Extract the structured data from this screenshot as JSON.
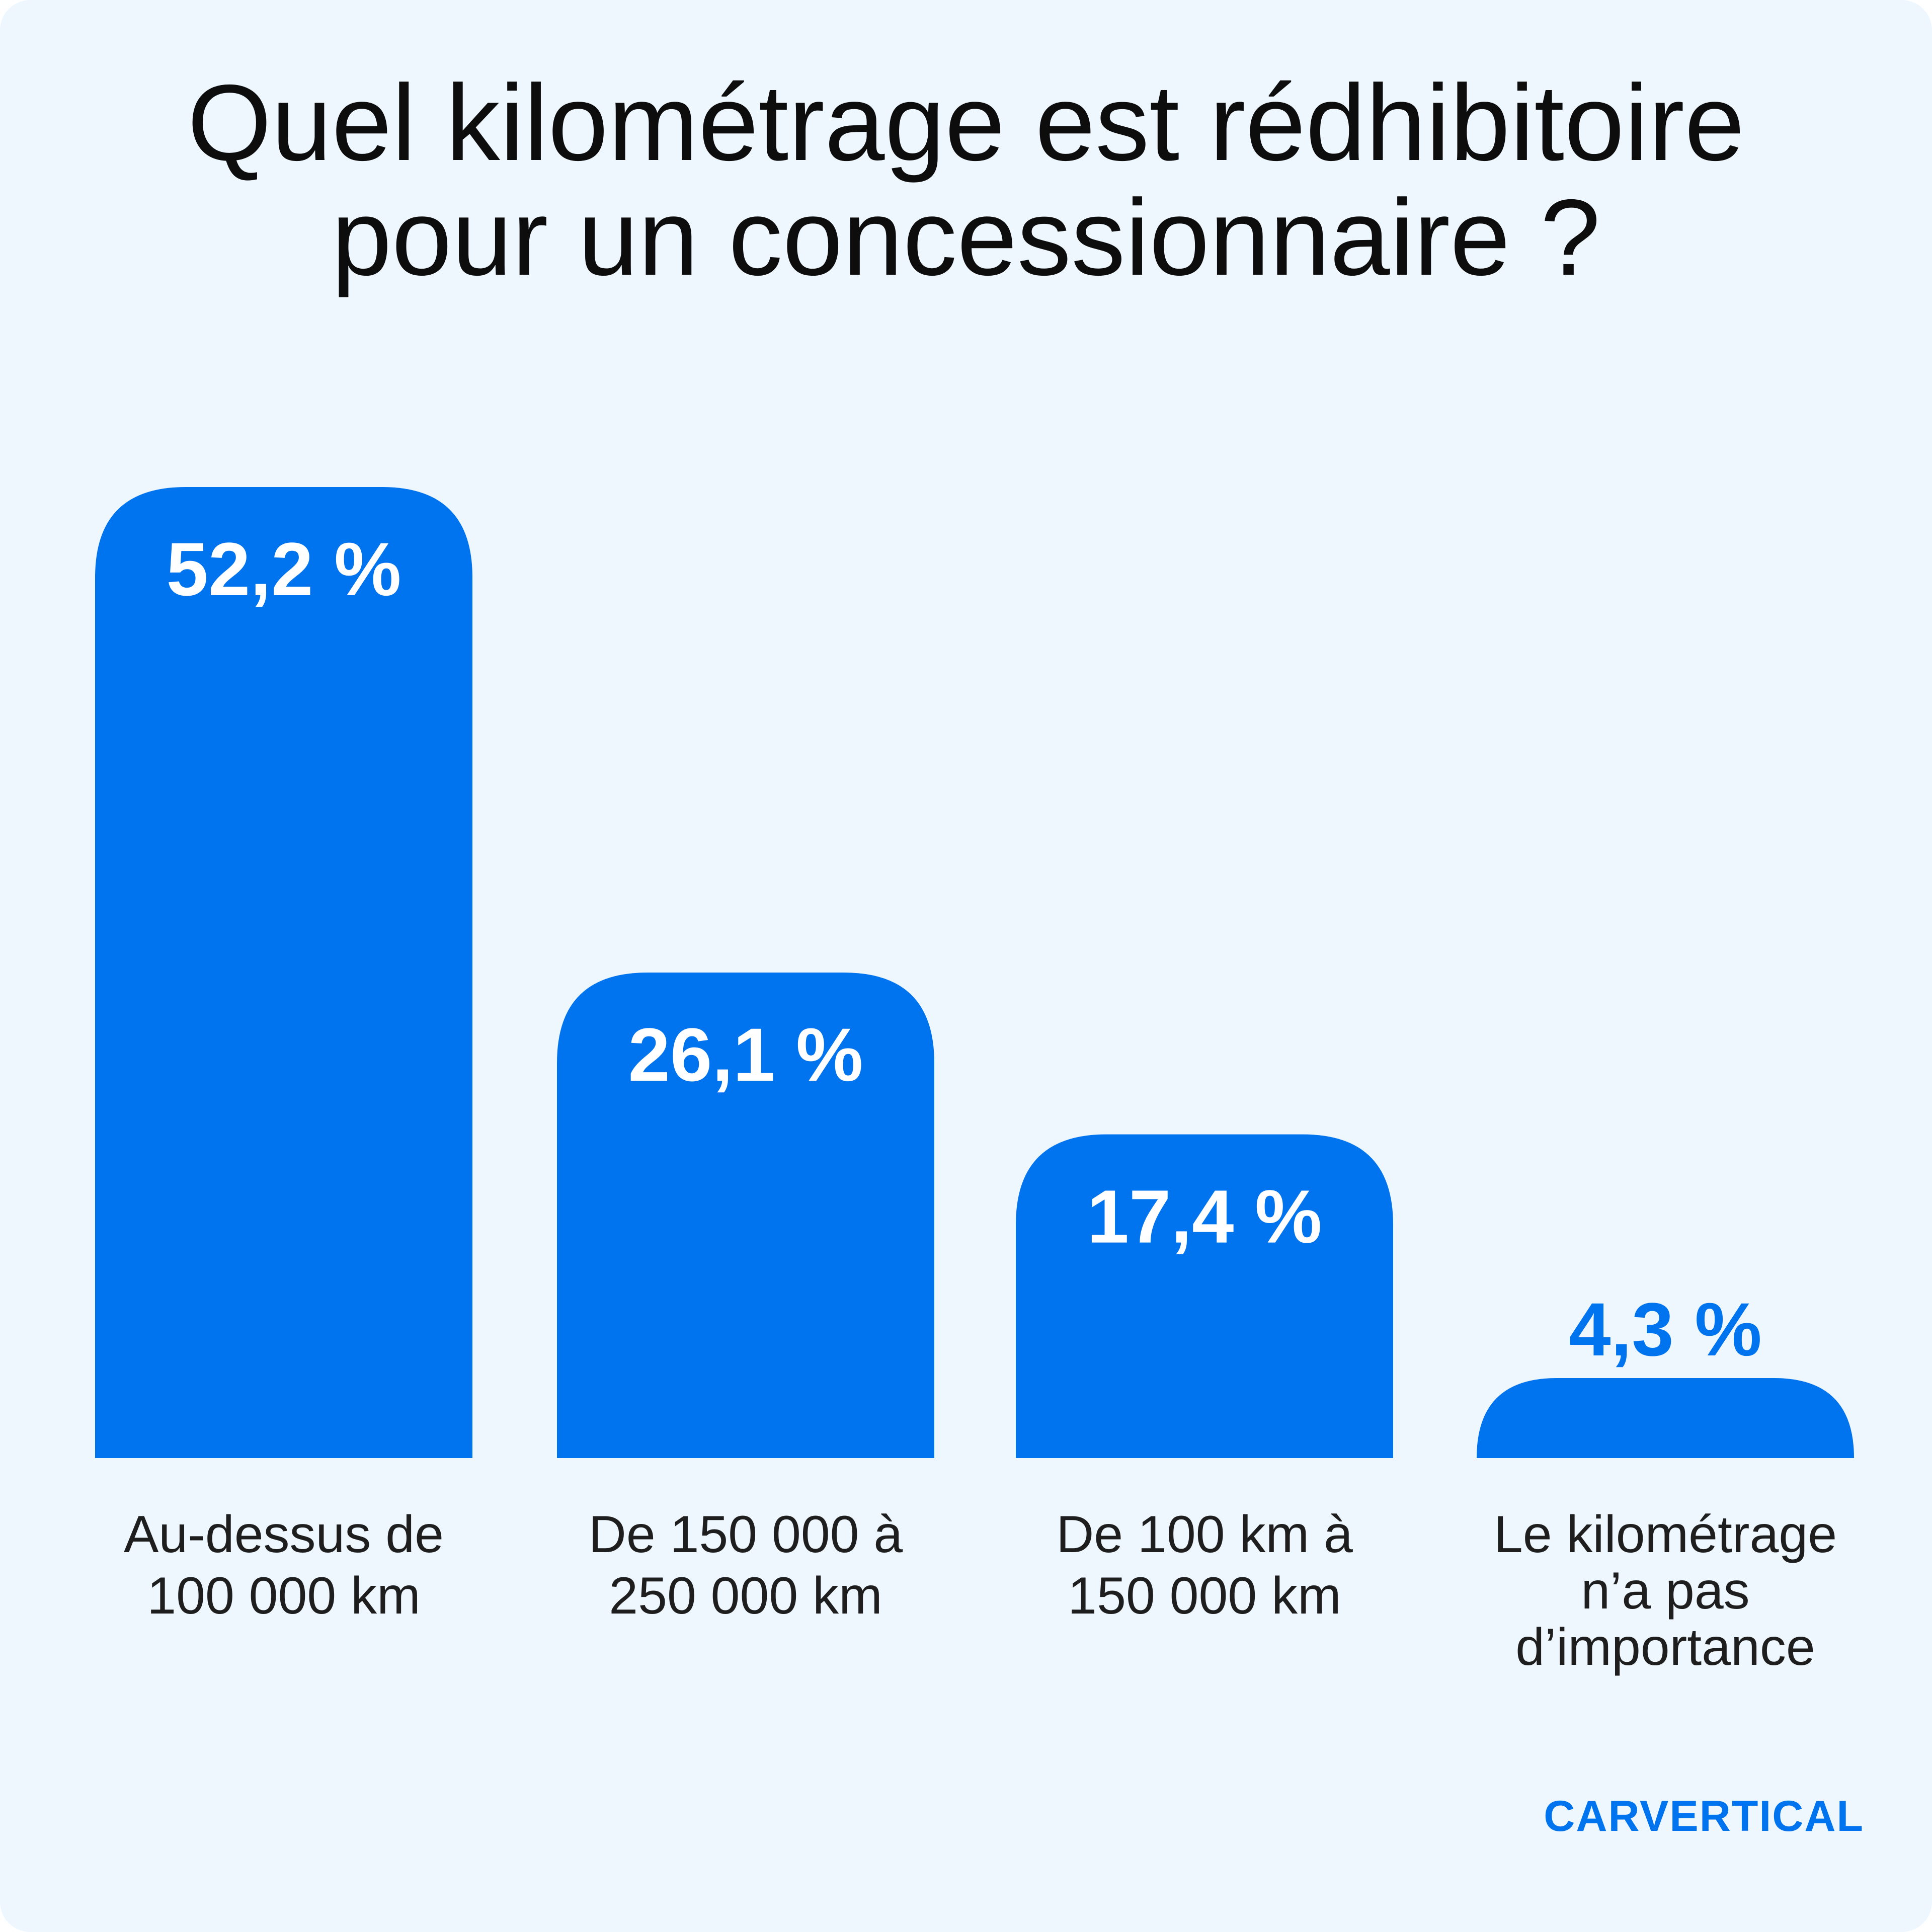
{
  "chart_data": {
    "type": "bar",
    "title_lines": [
      "Quel kilométrage est rédhibitoire",
      "pour un concessionnaire ?"
    ],
    "categories": [
      [
        "Au-dessus de",
        "100 000 km"
      ],
      [
        "De 150 000 à",
        "250 000 km"
      ],
      [
        "De 100 km à",
        "150 000 km"
      ],
      [
        "Le kilométrage",
        "n’a pas",
        "d’importance"
      ]
    ],
    "values": [
      52.2,
      26.1,
      17.4,
      4.3
    ],
    "value_labels": [
      "52,2 %",
      "26,1 %",
      "17,4 %",
      "4,3 %"
    ],
    "unit": "%",
    "ylim": [
      0,
      52.2
    ],
    "grid": false,
    "legend": "none",
    "colors": {
      "bar": "#0073ee",
      "label_inside": "#ffffff",
      "label_outside": "#0073ee",
      "background": "#eef6fe"
    }
  },
  "brand": {
    "logo_text": "CARVERTICAL"
  }
}
